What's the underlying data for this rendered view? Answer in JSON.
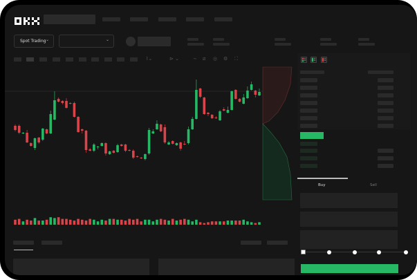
{
  "header": {
    "logo": "OKX",
    "nav": [
      "",
      "",
      "",
      "",
      ""
    ]
  },
  "market": {
    "mode_label": "Spot Trading",
    "pair_label": ""
  },
  "orderbook": {
    "view_icons": [
      "both-sides-icon",
      "bids-only-icon",
      "asks-only-icon"
    ]
  },
  "trade_form": {
    "tabs": [
      {
        "label": "Buy",
        "active": true
      },
      {
        "label": "Sell",
        "active": false
      }
    ],
    "slider_percent": 0,
    "slider_stops": [
      0,
      25,
      50,
      75,
      100
    ]
  },
  "bottom": {
    "tabs": [
      "",
      ""
    ]
  },
  "colors": {
    "up": "#26b864",
    "down": "#d9434a",
    "background": "#161616",
    "panel": "#1b1b1b"
  },
  "chart_data": {
    "type": "candlestick",
    "candles": [
      [
        58,
        60,
        50,
        52
      ],
      [
        58,
        60,
        46,
        48
      ],
      [
        47,
        49,
        46,
        48
      ],
      [
        48,
        52,
        33,
        34
      ],
      [
        33,
        34,
        28,
        29
      ],
      [
        26,
        41,
        23,
        40
      ],
      [
        41,
        42,
        32,
        34
      ],
      [
        38,
        55,
        36,
        54
      ],
      [
        53,
        54,
        46,
        47
      ],
      [
        47,
        80,
        46,
        75
      ],
      [
        67,
        108,
        66,
        95
      ],
      [
        97,
        99,
        92,
        93
      ],
      [
        94,
        95,
        89,
        91
      ],
      [
        94,
        98,
        83,
        84
      ],
      [
        91,
        92,
        89,
        90
      ],
      [
        91,
        93,
        70,
        71
      ],
      [
        71,
        72,
        48,
        49
      ],
      [
        53,
        54,
        47,
        51
      ],
      [
        51,
        52,
        19,
        23
      ],
      [
        24,
        26,
        21,
        22
      ],
      [
        22,
        33,
        20,
        31
      ],
      [
        27,
        29,
        24,
        28
      ],
      [
        29,
        34,
        28,
        33
      ],
      [
        33,
        34,
        15,
        18
      ],
      [
        17,
        22,
        16,
        21
      ],
      [
        22,
        23,
        18,
        19
      ],
      [
        20,
        32,
        19,
        30
      ],
      [
        31,
        32,
        28,
        29
      ],
      [
        31,
        32,
        20,
        22
      ],
      [
        23,
        24,
        21,
        22
      ],
      [
        22,
        24,
        10,
        12
      ],
      [
        14,
        15,
        12,
        13
      ],
      [
        12,
        13,
        10,
        11
      ],
      [
        10,
        18,
        8,
        17
      ],
      [
        18,
        55,
        16,
        52
      ],
      [
        47,
        53,
        46,
        50
      ],
      [
        53,
        66,
        52,
        61
      ],
      [
        60,
        61,
        49,
        50
      ],
      [
        56,
        60,
        32,
        34
      ],
      [
        31,
        36,
        30,
        34
      ],
      [
        36,
        37,
        31,
        32
      ],
      [
        30,
        34,
        29,
        33
      ],
      [
        34,
        35,
        22,
        25
      ],
      [
        32,
        36,
        30,
        31
      ],
      [
        33,
        57,
        31,
        53
      ],
      [
        53,
        71,
        52,
        68
      ],
      [
        68,
        125,
        67,
        110
      ],
      [
        112,
        113,
        98,
        100
      ],
      [
        99,
        100,
        74,
        75
      ],
      [
        77,
        78,
        72,
        75
      ],
      [
        74,
        75,
        68,
        69
      ],
      [
        70,
        72,
        68,
        69
      ],
      [
        66,
        81,
        65,
        79
      ],
      [
        82,
        85,
        79,
        80
      ],
      [
        77,
        86,
        76,
        81
      ],
      [
        81,
        109,
        80,
        108
      ],
      [
        110,
        111,
        96,
        97
      ],
      [
        97,
        98,
        92,
        93
      ],
      [
        90,
        104,
        89,
        99
      ],
      [
        98,
        115,
        97,
        109
      ],
      [
        110,
        122,
        109,
        118
      ],
      [
        109,
        110,
        99,
        103
      ],
      [
        102,
        112,
        101,
        107
      ]
    ],
    "volumes": [
      6,
      7,
      4,
      6,
      5,
      8,
      5,
      5,
      6,
      9,
      8,
      9,
      7,
      7,
      6,
      5,
      7,
      6,
      5,
      7,
      6,
      4,
      6,
      5,
      7,
      7,
      6,
      6,
      5,
      7,
      6,
      7,
      4,
      6,
      6,
      4,
      6,
      7,
      6,
      5,
      7,
      5,
      6,
      7,
      6,
      4,
      6,
      3,
      2,
      3,
      4,
      4,
      4,
      4,
      5,
      5,
      5,
      5,
      6,
      4,
      3,
      2,
      3
    ],
    "depth": {
      "asks_color": "#d9434a",
      "bids_color": "#26b864"
    }
  }
}
